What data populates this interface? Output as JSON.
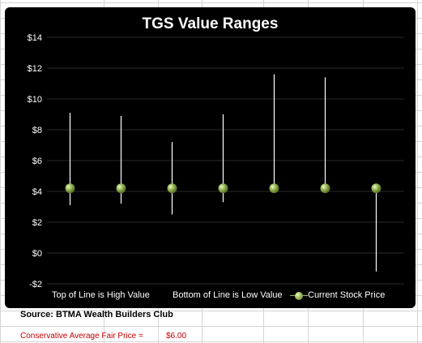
{
  "chart_data": {
    "type": "stock-hi-lo",
    "title": "TGS Value Ranges",
    "ylim": [
      -2,
      14
    ],
    "y_ticks": [
      -2,
      0,
      2,
      4,
      6,
      8,
      10,
      12,
      14
    ],
    "y_tick_labels": [
      "-$2",
      "$0",
      "$2",
      "$4",
      "$6",
      "$8",
      "$10",
      "$12",
      "$14"
    ],
    "grid": true,
    "legend_placement": "bottom",
    "series": [
      {
        "name": "Top of Line is High Value",
        "values": [
          9.1,
          8.9,
          7.2,
          9.0,
          11.6,
          11.4,
          4.2
        ]
      },
      {
        "name": "Bottom of Line is Low Value",
        "values": [
          3.1,
          3.2,
          2.5,
          3.3,
          4.2,
          4.2,
          -1.2
        ]
      },
      {
        "name": "Current Stock Price",
        "values": [
          4.2,
          4.2,
          4.2,
          4.2,
          4.2,
          4.2,
          4.2
        ]
      }
    ],
    "colors": {
      "background": "#000000",
      "range_line": "#ffffff",
      "marker": "#9bbb59",
      "gridline": "#2a2a2a",
      "text": "#ffffff"
    }
  },
  "source": "Source: BTMA Wealth Builders Club",
  "fair_price": {
    "label": "Conservative Average Fair Price =",
    "value": "$6.00"
  },
  "colors": {
    "fair_price_text": "#c00000",
    "sheet_grid": "#d4d4d4"
  }
}
